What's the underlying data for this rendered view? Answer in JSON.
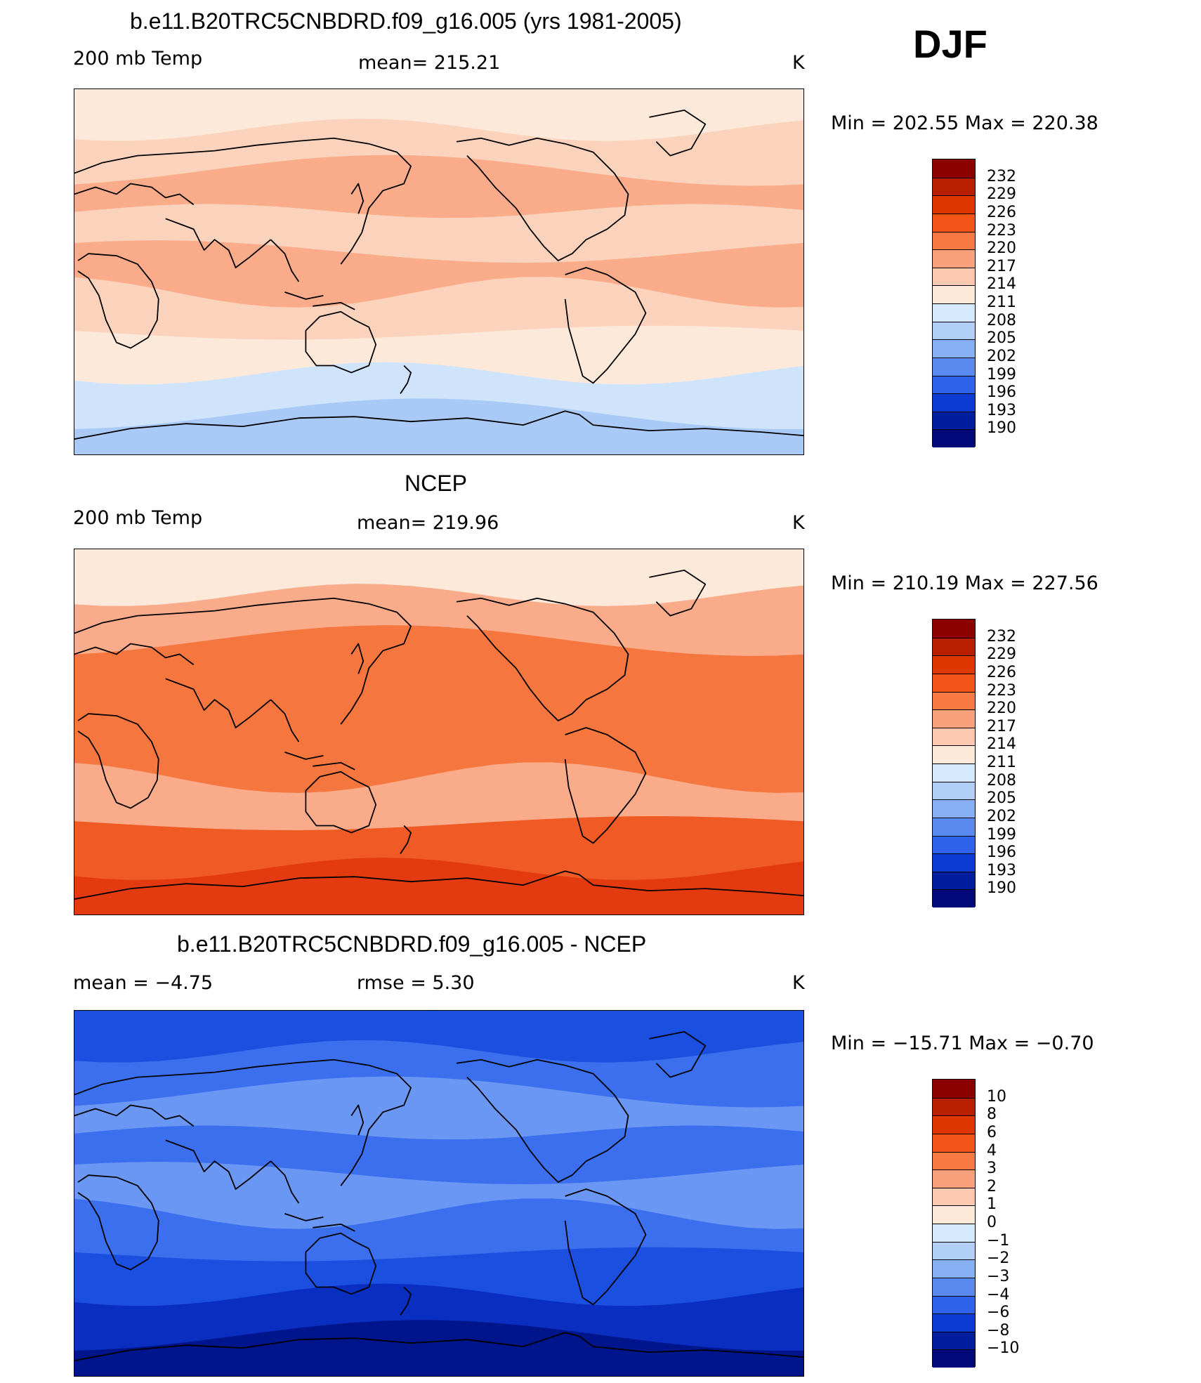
{
  "season": "DJF",
  "panels": [
    {
      "title": "b.e11.B20TRC5CNBDRD.f09_g16.005 (yrs 1981-2005)",
      "left_label": "200 mb Temp",
      "center_label": "mean=  215.21",
      "unit": "K",
      "minmax": "Min  =  202.55  Max  =  220.38",
      "colorbar_levels": [
        "232",
        "229",
        "226",
        "223",
        "220",
        "217",
        "214",
        "211",
        "208",
        "205",
        "202",
        "199",
        "196",
        "193",
        "190"
      ],
      "band_colors": [
        "#fde9da",
        "#fbd3bd",
        "#f9ab8a",
        "#fbd3bd",
        "#f9ab8a",
        "#fbd3bd",
        "#fde9da",
        "#cfe4fb",
        "#a9caf7"
      ]
    },
    {
      "title": "NCEP",
      "left_label": "200 mb Temp",
      "center_label": "mean=  219.96",
      "unit": "K",
      "minmax": "Min  =  210.19  Max  =  227.56",
      "colorbar_levels": [
        "232",
        "229",
        "226",
        "223",
        "220",
        "217",
        "214",
        "211",
        "208",
        "205",
        "202",
        "199",
        "196",
        "193",
        "190"
      ],
      "band_colors": [
        "#fde9da",
        "#f9ab8a",
        "#f5773f",
        "#f5773f",
        "#f5773f",
        "#f9ab8a",
        "#f05a25",
        "#e33a10"
      ]
    },
    {
      "title": "b.e11.B20TRC5CNBDRD.f09_g16.005 - NCEP",
      "left_label": "mean =    −4.75",
      "center_label": "rmse =      5.30",
      "unit": "K",
      "minmax": "Min  =  −15.71  Max  =    −0.70",
      "colorbar_levels": [
        "10",
        "8",
        "6",
        "4",
        "3",
        "2",
        "1",
        "0",
        "−1",
        "−2",
        "−3",
        "−4",
        "−6",
        "−8",
        "−10"
      ],
      "band_colors": [
        "#1b4fe0",
        "#3b6fee",
        "#6a96f4",
        "#3b6fee",
        "#6a96f4",
        "#3b6fee",
        "#1b4fe0",
        "#0a2fc0",
        "#00158c"
      ]
    }
  ],
  "colors": {
    "colorbar": [
      "#8c0000",
      "#b81e00",
      "#de3700",
      "#f25418",
      "#f77a45",
      "#f9a07d",
      "#fcc8b0",
      "#fde9da",
      "#d6e8fc",
      "#b2cff8",
      "#87aff4",
      "#5a8aef",
      "#2f62ea",
      "#0b3bd3",
      "#001e9e",
      "#00087a"
    ],
    "coast": "#000000"
  }
}
